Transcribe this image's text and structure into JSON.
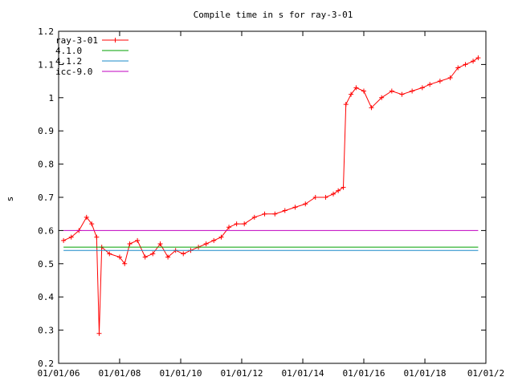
{
  "chart_data": {
    "type": "line",
    "title": "Compile time in s for ray-3-01",
    "xlabel": "",
    "ylabel": "s",
    "ylim": [
      0.2,
      1.2
    ],
    "xlim": [
      "2006-01-01",
      "2020-01-01"
    ],
    "y_ticks": [
      "0.2",
      "0.3",
      "0.4",
      "0.5",
      "0.6",
      "0.7",
      "0.8",
      "0.9",
      "1",
      "1.1",
      "1.2"
    ],
    "x_ticks": [
      "01/01/06",
      "01/01/08",
      "01/01/10",
      "01/01/12",
      "01/01/14",
      "01/01/16",
      "01/01/18",
      "01/01/2"
    ],
    "grid": false,
    "legend_position": "top-left",
    "series": [
      {
        "name": "ray-3-01",
        "color": "#ff0000",
        "marker": "plus",
        "points": [
          [
            "2006-03-01",
            0.57
          ],
          [
            "2006-06-01",
            0.58
          ],
          [
            "2006-09-01",
            0.6
          ],
          [
            "2006-12-01",
            0.64
          ],
          [
            "2007-02-01",
            0.62
          ],
          [
            "2007-04-01",
            0.58
          ],
          [
            "2007-05-01",
            0.29
          ],
          [
            "2007-06-01",
            0.55
          ],
          [
            "2007-09-01",
            0.53
          ],
          [
            "2008-01-01",
            0.52
          ],
          [
            "2008-03-01",
            0.5
          ],
          [
            "2008-05-01",
            0.56
          ],
          [
            "2008-08-01",
            0.57
          ],
          [
            "2008-11-01",
            0.52
          ],
          [
            "2009-02-01",
            0.53
          ],
          [
            "2009-05-01",
            0.56
          ],
          [
            "2009-08-01",
            0.52
          ],
          [
            "2009-11-01",
            0.54
          ],
          [
            "2010-02-01",
            0.53
          ],
          [
            "2010-05-01",
            0.54
          ],
          [
            "2010-08-01",
            0.55
          ],
          [
            "2010-11-01",
            0.56
          ],
          [
            "2011-02-01",
            0.57
          ],
          [
            "2011-05-01",
            0.58
          ],
          [
            "2011-08-01",
            0.61
          ],
          [
            "2011-11-01",
            0.62
          ],
          [
            "2012-02-01",
            0.62
          ],
          [
            "2012-06-01",
            0.64
          ],
          [
            "2012-10-01",
            0.65
          ],
          [
            "2013-02-01",
            0.65
          ],
          [
            "2013-06-01",
            0.66
          ],
          [
            "2013-10-01",
            0.67
          ],
          [
            "2014-02-01",
            0.68
          ],
          [
            "2014-06-01",
            0.7
          ],
          [
            "2014-10-01",
            0.7
          ],
          [
            "2015-01-01",
            0.71
          ],
          [
            "2015-03-01",
            0.72
          ],
          [
            "2015-05-01",
            0.73
          ],
          [
            "2015-06-01",
            0.98
          ],
          [
            "2015-08-01",
            1.01
          ],
          [
            "2015-10-01",
            1.03
          ],
          [
            "2016-01-01",
            1.02
          ],
          [
            "2016-04-01",
            0.97
          ],
          [
            "2016-08-01",
            1.0
          ],
          [
            "2016-12-01",
            1.02
          ],
          [
            "2017-04-01",
            1.01
          ],
          [
            "2017-08-01",
            1.02
          ],
          [
            "2017-12-01",
            1.03
          ],
          [
            "2018-03-01",
            1.04
          ],
          [
            "2018-07-01",
            1.05
          ],
          [
            "2018-11-01",
            1.06
          ],
          [
            "2019-02-01",
            1.09
          ],
          [
            "2019-05-01",
            1.1
          ],
          [
            "2019-08-01",
            1.11
          ],
          [
            "2019-10-01",
            1.12
          ]
        ]
      },
      {
        "name": "4.1.0",
        "color": "#00a000",
        "y": 0.55
      },
      {
        "name": "4.1.2",
        "color": "#1a8ac8",
        "y": 0.54
      },
      {
        "name": "icc-9.0",
        "color": "#c000c0",
        "y": 0.6
      }
    ]
  }
}
